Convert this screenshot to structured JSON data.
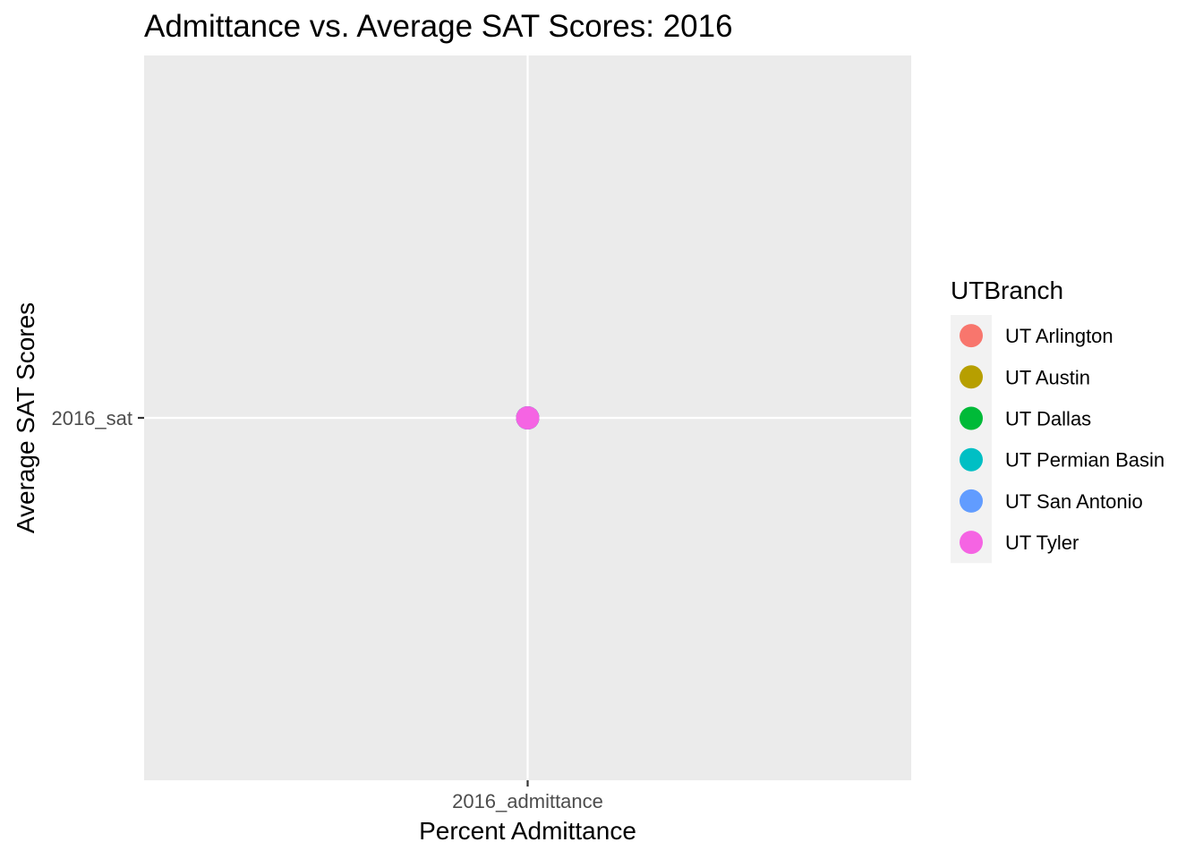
{
  "chart_data": {
    "type": "scatter",
    "title": "Admittance vs. Average SAT Scores: 2016",
    "xlabel": "Percent Admittance",
    "ylabel": "Average SAT Scores",
    "x_categories": [
      "2016_admittance"
    ],
    "y_categories": [
      "2016_sat"
    ],
    "grid": true,
    "legend": {
      "title": "UTBranch",
      "placement": "right"
    },
    "series": [
      {
        "name": "UT Arlington",
        "color": "#F8766D",
        "points": [
          {
            "x": "2016_admittance",
            "y": "2016_sat"
          }
        ]
      },
      {
        "name": "UT Austin",
        "color": "#B79F00",
        "points": [
          {
            "x": "2016_admittance",
            "y": "2016_sat"
          }
        ]
      },
      {
        "name": "UT Dallas",
        "color": "#00BA38",
        "points": [
          {
            "x": "2016_admittance",
            "y": "2016_sat"
          }
        ]
      },
      {
        "name": "UT Permian Basin",
        "color": "#00BFC4",
        "points": [
          {
            "x": "2016_admittance",
            "y": "2016_sat"
          }
        ]
      },
      {
        "name": "UT San Antonio",
        "color": "#619CFF",
        "points": [
          {
            "x": "2016_admittance",
            "y": "2016_sat"
          }
        ]
      },
      {
        "name": "UT Tyler",
        "color": "#F564E3",
        "points": [
          {
            "x": "2016_admittance",
            "y": "2016_sat"
          }
        ]
      }
    ]
  }
}
